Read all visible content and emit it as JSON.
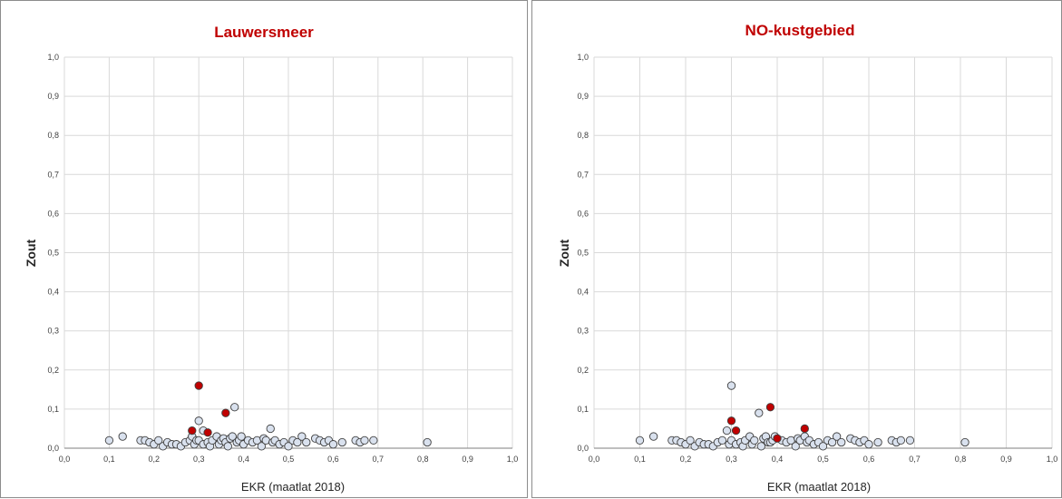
{
  "colors": {
    "title": "#c00000",
    "point_fill": "#d9e1ee",
    "point_stroke": "#404040",
    "highlight_fill": "#c00000",
    "grid": "#d9d9d9"
  },
  "chart_data": [
    {
      "type": "scatter",
      "title": "Lauwersmeer",
      "xlabel": "EKR (maatlat 2018)",
      "ylabel": "Zout",
      "xlim": [
        0,
        1
      ],
      "ylim": [
        0,
        1
      ],
      "x_ticks": [
        "0,0",
        "0,1",
        "0,2",
        "0,3",
        "0,4",
        "0,5",
        "0,6",
        "0,7",
        "0,8",
        "0,9",
        "1,0"
      ],
      "y_ticks": [
        "0,0",
        "0,1",
        "0,2",
        "0,3",
        "0,4",
        "0,5",
        "0,6",
        "0,7",
        "0,8",
        "0,9",
        "1,0"
      ],
      "grid": true,
      "legend": "none",
      "series": [
        {
          "color": "#d9e1ee",
          "points": [
            [
              0.1,
              0.02
            ],
            [
              0.13,
              0.03
            ],
            [
              0.17,
              0.02
            ],
            [
              0.18,
              0.02
            ],
            [
              0.19,
              0.015
            ],
            [
              0.2,
              0.01
            ],
            [
              0.21,
              0.02
            ],
            [
              0.22,
              0.005
            ],
            [
              0.23,
              0.015
            ],
            [
              0.24,
              0.01
            ],
            [
              0.25,
              0.01
            ],
            [
              0.26,
              0.005
            ],
            [
              0.27,
              0.015
            ],
            [
              0.28,
              0.02
            ],
            [
              0.285,
              0.03
            ],
            [
              0.29,
              0.01
            ],
            [
              0.295,
              0.02
            ],
            [
              0.3,
              0.07
            ],
            [
              0.3,
              0.02
            ],
            [
              0.31,
              0.01
            ],
            [
              0.31,
              0.045
            ],
            [
              0.32,
              0.015
            ],
            [
              0.325,
              0.005
            ],
            [
              0.33,
              0.02
            ],
            [
              0.34,
              0.03
            ],
            [
              0.345,
              0.01
            ],
            [
              0.35,
              0.02
            ],
            [
              0.355,
              0.025
            ],
            [
              0.36,
              0.015
            ],
            [
              0.365,
              0.005
            ],
            [
              0.37,
              0.025
            ],
            [
              0.375,
              0.03
            ],
            [
              0.38,
              0.105
            ],
            [
              0.385,
              0.015
            ],
            [
              0.39,
              0.02
            ],
            [
              0.395,
              0.03
            ],
            [
              0.4,
              0.01
            ],
            [
              0.41,
              0.02
            ],
            [
              0.42,
              0.015
            ],
            [
              0.43,
              0.02
            ],
            [
              0.44,
              0.005
            ],
            [
              0.445,
              0.025
            ],
            [
              0.45,
              0.02
            ],
            [
              0.46,
              0.05
            ],
            [
              0.465,
              0.015
            ],
            [
              0.47,
              0.02
            ],
            [
              0.48,
              0.01
            ],
            [
              0.49,
              0.015
            ],
            [
              0.5,
              0.005
            ],
            [
              0.51,
              0.02
            ],
            [
              0.52,
              0.015
            ],
            [
              0.53,
              0.03
            ],
            [
              0.54,
              0.015
            ],
            [
              0.56,
              0.025
            ],
            [
              0.57,
              0.02
            ],
            [
              0.58,
              0.015
            ],
            [
              0.59,
              0.02
            ],
            [
              0.6,
              0.01
            ],
            [
              0.62,
              0.015
            ],
            [
              0.65,
              0.02
            ],
            [
              0.66,
              0.015
            ],
            [
              0.67,
              0.02
            ],
            [
              0.69,
              0.02
            ],
            [
              0.81,
              0.015
            ]
          ]
        },
        {
          "color": "#c00000",
          "points": [
            [
              0.3,
              0.16
            ],
            [
              0.36,
              0.09
            ],
            [
              0.285,
              0.045
            ],
            [
              0.32,
              0.04
            ]
          ]
        }
      ]
    },
    {
      "type": "scatter",
      "title": "NO-kustgebied",
      "xlabel": "EKR (maatlat 2018)",
      "ylabel": "Zout",
      "xlim": [
        0,
        1
      ],
      "ylim": [
        0,
        1
      ],
      "x_ticks": [
        "0,0",
        "0,1",
        "0,2",
        "0,3",
        "0,4",
        "0,5",
        "0,6",
        "0,7",
        "0,8",
        "0,9",
        "1,0"
      ],
      "y_ticks": [
        "0,0",
        "0,1",
        "0,2",
        "0,3",
        "0,4",
        "0,5",
        "0,6",
        "0,7",
        "0,8",
        "0,9",
        "1,0"
      ],
      "grid": true,
      "legend": "none",
      "series": [
        {
          "color": "#d9e1ee",
          "points": [
            [
              0.1,
              0.02
            ],
            [
              0.13,
              0.03
            ],
            [
              0.17,
              0.02
            ],
            [
              0.18,
              0.02
            ],
            [
              0.19,
              0.015
            ],
            [
              0.2,
              0.01
            ],
            [
              0.21,
              0.02
            ],
            [
              0.22,
              0.005
            ],
            [
              0.23,
              0.015
            ],
            [
              0.24,
              0.01
            ],
            [
              0.25,
              0.01
            ],
            [
              0.26,
              0.005
            ],
            [
              0.27,
              0.015
            ],
            [
              0.28,
              0.02
            ],
            [
              0.29,
              0.045
            ],
            [
              0.295,
              0.01
            ],
            [
              0.3,
              0.16
            ],
            [
              0.3,
              0.02
            ],
            [
              0.31,
              0.01
            ],
            [
              0.32,
              0.015
            ],
            [
              0.325,
              0.005
            ],
            [
              0.33,
              0.02
            ],
            [
              0.34,
              0.03
            ],
            [
              0.345,
              0.01
            ],
            [
              0.35,
              0.02
            ],
            [
              0.36,
              0.09
            ],
            [
              0.365,
              0.005
            ],
            [
              0.37,
              0.025
            ],
            [
              0.375,
              0.03
            ],
            [
              0.38,
              0.015
            ],
            [
              0.385,
              0.015
            ],
            [
              0.39,
              0.02
            ],
            [
              0.395,
              0.03
            ],
            [
              0.41,
              0.02
            ],
            [
              0.42,
              0.015
            ],
            [
              0.43,
              0.02
            ],
            [
              0.44,
              0.005
            ],
            [
              0.445,
              0.025
            ],
            [
              0.45,
              0.02
            ],
            [
              0.46,
              0.03
            ],
            [
              0.465,
              0.015
            ],
            [
              0.47,
              0.02
            ],
            [
              0.48,
              0.01
            ],
            [
              0.49,
              0.015
            ],
            [
              0.5,
              0.005
            ],
            [
              0.51,
              0.02
            ],
            [
              0.52,
              0.015
            ],
            [
              0.53,
              0.03
            ],
            [
              0.54,
              0.015
            ],
            [
              0.56,
              0.025
            ],
            [
              0.57,
              0.02
            ],
            [
              0.58,
              0.015
            ],
            [
              0.59,
              0.02
            ],
            [
              0.6,
              0.01
            ],
            [
              0.62,
              0.015
            ],
            [
              0.65,
              0.02
            ],
            [
              0.66,
              0.015
            ],
            [
              0.67,
              0.02
            ],
            [
              0.69,
              0.02
            ],
            [
              0.81,
              0.015
            ]
          ]
        },
        {
          "color": "#c00000",
          "points": [
            [
              0.3,
              0.07
            ],
            [
              0.31,
              0.045
            ],
            [
              0.385,
              0.105
            ],
            [
              0.4,
              0.025
            ],
            [
              0.46,
              0.05
            ]
          ]
        }
      ]
    }
  ]
}
